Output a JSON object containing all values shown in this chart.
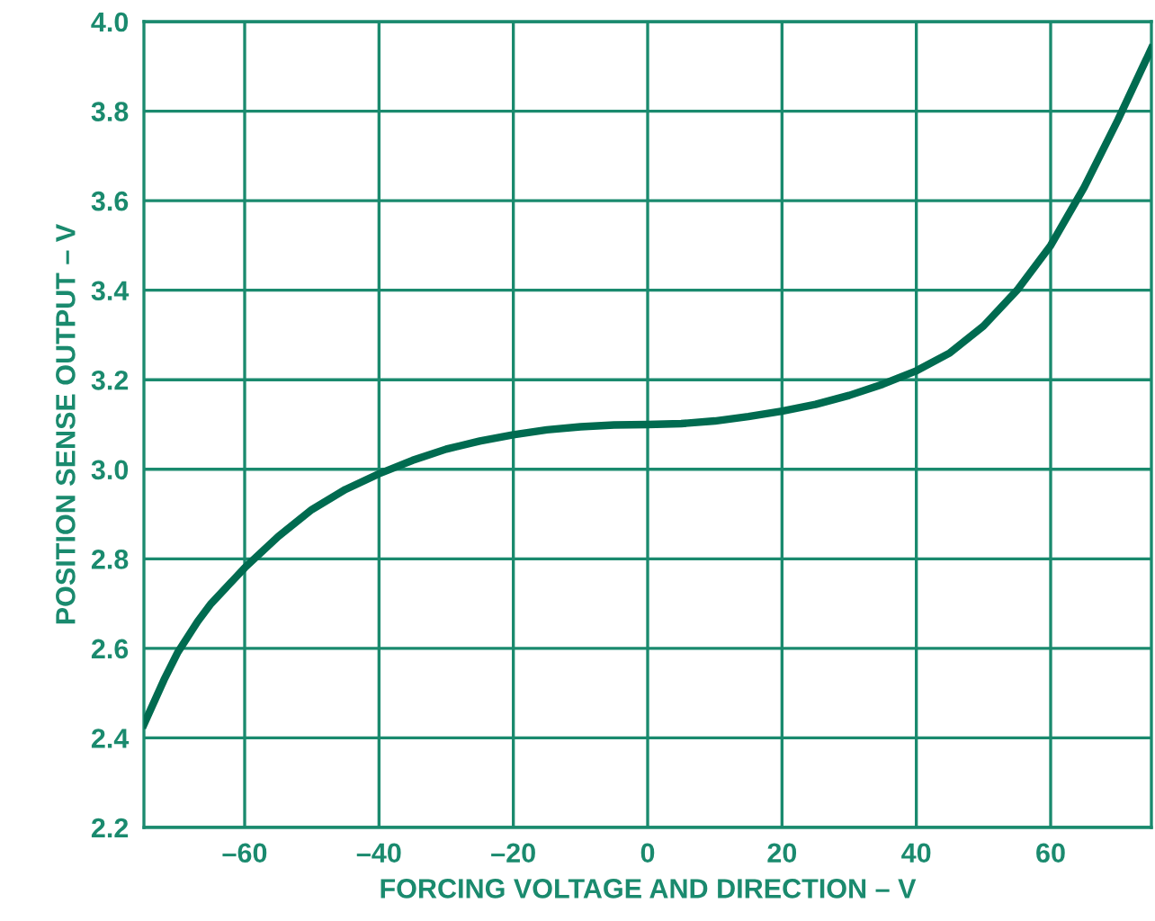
{
  "chart_data": {
    "type": "line",
    "xlabel": "FORCING VOLTAGE AND DIRECTION – V",
    "ylabel": "POSITION SENSE OUTPUT – V",
    "x": [
      -75,
      -72,
      -70,
      -67,
      -65,
      -60,
      -55,
      -50,
      -45,
      -40,
      -35,
      -30,
      -25,
      -20,
      -15,
      -10,
      -5,
      0,
      5,
      10,
      15,
      20,
      25,
      30,
      35,
      40,
      45,
      50,
      55,
      60,
      65,
      70,
      75
    ],
    "series": [
      {
        "color": "#006b50",
        "values": [
          2.43,
          2.53,
          2.59,
          2.66,
          2.7,
          2.78,
          2.85,
          2.91,
          2.955,
          2.99,
          3.02,
          3.045,
          3.063,
          3.077,
          3.088,
          3.095,
          3.099,
          3.1,
          3.102,
          3.108,
          3.118,
          3.13,
          3.145,
          3.165,
          3.19,
          3.22,
          3.26,
          3.32,
          3.4,
          3.5,
          3.63,
          3.78,
          3.94
        ]
      }
    ],
    "xlim": [
      -75,
      75
    ],
    "ylim": [
      2.2,
      4.0
    ],
    "xticks": [
      {
        "value": -60,
        "label": "–60"
      },
      {
        "value": -40,
        "label": "–40"
      },
      {
        "value": -20,
        "label": "–20"
      },
      0,
      20,
      40,
      60
    ],
    "yticks": [
      {
        "value": 2.2,
        "label": "2.2"
      },
      {
        "value": 2.4,
        "label": "2.4"
      },
      {
        "value": 2.6,
        "label": "2.6"
      },
      {
        "value": 2.8,
        "label": "2.8"
      },
      {
        "value": 3.0,
        "label": "3.0"
      },
      {
        "value": 3.2,
        "label": "3.2"
      },
      {
        "value": 3.4,
        "label": "3.4"
      },
      {
        "value": 3.6,
        "label": "3.6"
      },
      {
        "value": 3.8,
        "label": "3.8"
      },
      {
        "value": 4.0,
        "label": "4.0"
      }
    ],
    "grid": true,
    "marker": "none",
    "line_style": "solid"
  }
}
